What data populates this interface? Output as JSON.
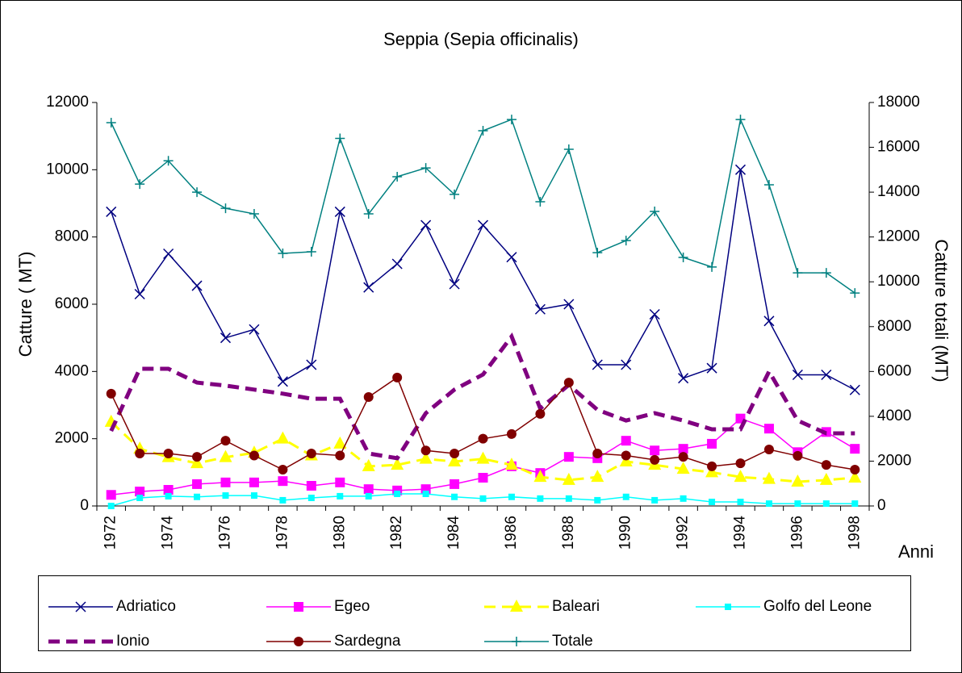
{
  "chart_data": {
    "type": "line",
    "title": "Seppia (Sepia officinalis)",
    "y_label": "Catture ( MT)",
    "y2_label": "Catture totali  (MT)",
    "x_label": "Anni",
    "categories": [
      "1972",
      null,
      "1974",
      null,
      "1976",
      null,
      "1978",
      null,
      "1980",
      null,
      "1982",
      null,
      "1984",
      null,
      "1986",
      null,
      "1988",
      null,
      "1990",
      null,
      "1992",
      null,
      "1994",
      null,
      "1996",
      null,
      "1998"
    ],
    "ylim": [
      0,
      12000
    ],
    "yticks": [
      0,
      2000,
      4000,
      6000,
      8000,
      10000,
      12000
    ],
    "y2lim": [
      0,
      18000
    ],
    "y2ticks": [
      0,
      2000,
      4000,
      6000,
      8000,
      10000,
      12000,
      14000,
      16000,
      18000
    ],
    "series": [
      {
        "name": "Adriatico",
        "color": "#000080",
        "marker": "x",
        "dash": false,
        "values": [
          8750,
          6300,
          7500,
          6550,
          5000,
          5250,
          3700,
          4200,
          8750,
          6500,
          7200,
          8350,
          6600,
          8350,
          7400,
          5850,
          6000,
          4200,
          4200,
          5700,
          3800,
          4100,
          10000,
          5500,
          3900,
          3900,
          3450
        ]
      },
      {
        "name": "Egeo",
        "color": "#ff00ff",
        "marker": "square",
        "dash": false,
        "values": [
          330,
          430,
          480,
          650,
          700,
          700,
          740,
          600,
          700,
          500,
          460,
          500,
          650,
          840,
          1180,
          980,
          1460,
          1420,
          1940,
          1650,
          1700,
          1850,
          2600,
          2300,
          1600,
          2200,
          1700
        ]
      },
      {
        "name": "Baleari",
        "color": "#ffff00",
        "marker": "triangle",
        "dash": true,
        "values": [
          2500,
          1700,
          1450,
          1270,
          1450,
          1580,
          2000,
          1500,
          1850,
          1180,
          1220,
          1400,
          1320,
          1400,
          1220,
          860,
          770,
          860,
          1320,
          1220,
          1100,
          1000,
          860,
          800,
          720,
          770,
          840
        ]
      },
      {
        "name": "Golfo del Leone",
        "color": "#00ffff",
        "marker": "small-square",
        "dash": false,
        "values": [
          0,
          240,
          290,
          270,
          310,
          310,
          170,
          240,
          290,
          290,
          360,
          360,
          270,
          220,
          270,
          220,
          220,
          170,
          270,
          170,
          220,
          120,
          120,
          70,
          70,
          70,
          70
        ]
      },
      {
        "name": "Ionio",
        "color": "#800080",
        "marker": "none",
        "dash": true,
        "values": [
          2230,
          4080,
          4080,
          3670,
          3580,
          3460,
          3340,
          3190,
          3190,
          1560,
          1420,
          2760,
          3460,
          3910,
          5040,
          2900,
          3600,
          2860,
          2540,
          2760,
          2540,
          2280,
          2280,
          4000,
          2540,
          2160,
          2160
        ]
      },
      {
        "name": "Sardegna",
        "color": "#800000",
        "marker": "circle",
        "dash": false,
        "values": [
          3340,
          1560,
          1560,
          1460,
          1940,
          1500,
          1080,
          1560,
          1500,
          3240,
          3820,
          1650,
          1560,
          2000,
          2140,
          2740,
          3670,
          1560,
          1500,
          1370,
          1460,
          1180,
          1270,
          1680,
          1490,
          1220,
          1080
        ]
      },
      {
        "name": "Totale",
        "color": "#008080",
        "marker": "plus",
        "dash": false,
        "axis": "y2",
        "values": [
          17100,
          14360,
          15400,
          14000,
          13280,
          13030,
          11270,
          11340,
          16400,
          13030,
          14690,
          15080,
          13900,
          16740,
          17240,
          13570,
          15910,
          11300,
          11840,
          13140,
          11090,
          10660,
          17240,
          14330,
          10400,
          10400,
          9500
        ]
      }
    ]
  }
}
